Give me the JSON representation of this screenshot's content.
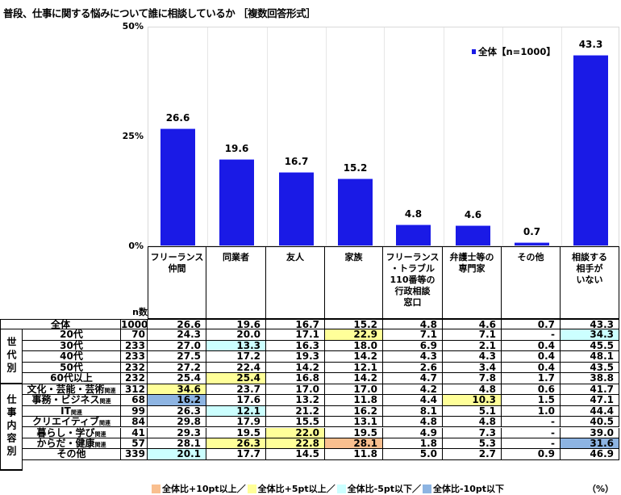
{
  "title": "普段、仕事に関する悩みについて誰に相談しているか ［複数回答形式］",
  "colors": {
    "bar": "#1a1ae6",
    "plus10": "#f9bf8f",
    "plus5": "#ffff99",
    "minus5": "#ccffff",
    "minus10": "#8db4e2"
  },
  "chart_data": {
    "type": "bar",
    "title": "普段、仕事に関する悩みについて誰に相談しているか ［複数回答形式］",
    "categories": [
      "フリーランス仲間",
      "同業者",
      "友人",
      "家族",
      "フリーランス・トラブル110番等の行政相談窓口",
      "弁護士等の専門家",
      "その他",
      "相談する相手がいない"
    ],
    "series": [
      {
        "name": "全体【n=1000】",
        "values": [
          26.6,
          19.6,
          16.7,
          15.2,
          4.8,
          4.6,
          0.7,
          43.3
        ]
      }
    ],
    "ylim": [
      0,
      50
    ],
    "yticks": [
      "0%",
      "25%",
      "50%"
    ],
    "legend": "top-right",
    "grid": "vertical"
  },
  "header_labels": [
    "フリーランス\n仲間",
    "同業者",
    "友人",
    "家族",
    "フリーランス\n・トラブル\n110番等の\n行政相談\n窓口",
    "弁護士等の\n専門家",
    "その他",
    "相談する\n相手が\nいない"
  ],
  "n_label": "n数",
  "groups": [
    {
      "label": "世代別",
      "rows": [
        1,
        5
      ]
    },
    {
      "label": "仕事内容別",
      "rows": [
        6,
        13
      ]
    }
  ],
  "rows": [
    {
      "label": "全体",
      "suffix": "",
      "n": "1000",
      "values": [
        "26.6",
        "19.6",
        "16.7",
        "15.2",
        "4.8",
        "4.6",
        "0.7",
        "43.3"
      ],
      "hl": [
        "",
        "",
        "",
        "",
        "",
        "",
        "",
        ""
      ]
    },
    {
      "label": "20代",
      "suffix": "",
      "n": "70",
      "values": [
        "24.3",
        "20.0",
        "17.1",
        "22.9",
        "7.1",
        "7.1",
        "-",
        "34.3"
      ],
      "hl": [
        "",
        "",
        "",
        "y",
        "",
        "",
        "",
        "c"
      ]
    },
    {
      "label": "30代",
      "suffix": "",
      "n": "233",
      "values": [
        "27.0",
        "13.3",
        "16.3",
        "18.0",
        "6.9",
        "2.1",
        "0.4",
        "45.5"
      ],
      "hl": [
        "",
        "c",
        "",
        "",
        "",
        "",
        "",
        ""
      ]
    },
    {
      "label": "40代",
      "suffix": "",
      "n": "233",
      "values": [
        "27.5",
        "17.2",
        "19.3",
        "14.2",
        "4.3",
        "4.3",
        "0.4",
        "48.1"
      ],
      "hl": [
        "",
        "",
        "",
        "",
        "",
        "",
        "",
        ""
      ]
    },
    {
      "label": "50代",
      "suffix": "",
      "n": "232",
      "values": [
        "27.2",
        "22.4",
        "14.2",
        "12.1",
        "2.6",
        "3.4",
        "0.4",
        "43.5"
      ],
      "hl": [
        "",
        "",
        "",
        "",
        "",
        "",
        "",
        ""
      ]
    },
    {
      "label": "60代以上",
      "suffix": "",
      "n": "232",
      "values": [
        "25.4",
        "25.4",
        "16.8",
        "14.2",
        "4.7",
        "7.8",
        "1.7",
        "38.8"
      ],
      "hl": [
        "",
        "y",
        "",
        "",
        "",
        "",
        "",
        ""
      ]
    },
    {
      "label": "文化・芸能・芸術",
      "suffix": "関連",
      "n": "312",
      "values": [
        "34.6",
        "23.7",
        "17.0",
        "17.0",
        "4.2",
        "4.8",
        "0.6",
        "41.7"
      ],
      "hl": [
        "y",
        "",
        "",
        "",
        "",
        "",
        "",
        ""
      ]
    },
    {
      "label": "事務・ビジネス",
      "suffix": "関連",
      "n": "68",
      "values": [
        "16.2",
        "17.6",
        "13.2",
        "11.8",
        "4.4",
        "10.3",
        "1.5",
        "47.1"
      ],
      "hl": [
        "b",
        "",
        "",
        "",
        "",
        "y",
        "",
        ""
      ]
    },
    {
      "label": "IT",
      "suffix": "関連",
      "n": "99",
      "values": [
        "26.3",
        "12.1",
        "21.2",
        "16.2",
        "8.1",
        "5.1",
        "1.0",
        "44.4"
      ],
      "hl": [
        "",
        "c",
        "",
        "",
        "",
        "",
        "",
        ""
      ]
    },
    {
      "label": "クリエイティブ",
      "suffix": "関連",
      "n": "84",
      "values": [
        "29.8",
        "17.9",
        "15.5",
        "13.1",
        "4.8",
        "4.8",
        "-",
        "40.5"
      ],
      "hl": [
        "",
        "",
        "",
        "",
        "",
        "",
        "",
        ""
      ]
    },
    {
      "label": "暮らし・学び",
      "suffix": "関連",
      "n": "41",
      "values": [
        "29.3",
        "19.5",
        "22.0",
        "19.5",
        "4.9",
        "7.3",
        "-",
        "39.0"
      ],
      "hl": [
        "",
        "",
        "y",
        "",
        "",
        "",
        "",
        ""
      ]
    },
    {
      "label": "からだ・健康",
      "suffix": "関連",
      "n": "57",
      "values": [
        "28.1",
        "26.3",
        "22.8",
        "28.1",
        "1.8",
        "5.3",
        "-",
        "31.6"
      ],
      "hl": [
        "",
        "y",
        "y",
        "o",
        "",
        "",
        "",
        "b"
      ]
    },
    {
      "label": "その他",
      "suffix": "",
      "n": "339",
      "values": [
        "20.1",
        "17.7",
        "14.5",
        "11.8",
        "5.0",
        "2.7",
        "0.9",
        "46.9"
      ],
      "hl": [
        "c",
        "",
        "",
        "",
        "",
        "",
        "",
        ""
      ]
    }
  ],
  "footer": {
    "items": [
      {
        "key": "o",
        "label": "全体比+10pt以上／"
      },
      {
        "key": "y",
        "label": "全体比+5pt以上／"
      },
      {
        "key": "c",
        "label": "全体比-5pt以下／"
      },
      {
        "key": "b",
        "label": "全体比-10pt以下"
      }
    ],
    "unit": "（%）"
  }
}
